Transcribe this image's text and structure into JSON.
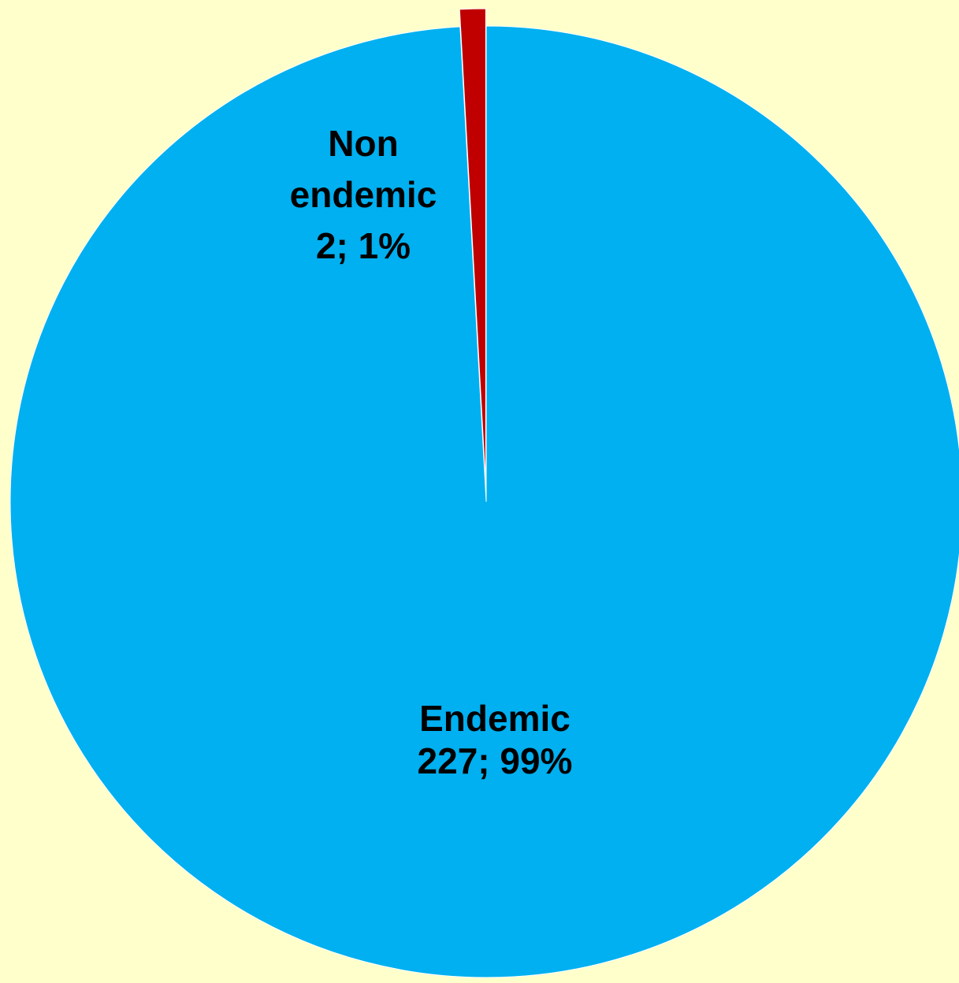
{
  "background_color": "#FFFFCC",
  "chart_data": {
    "type": "pie",
    "title": "",
    "start_angle_deg": 0,
    "direction": "counterclockwise",
    "slices": [
      {
        "id": "endemic",
        "label_lines": [
          "Endemic",
          "227; 99%"
        ],
        "value": 227,
        "percent": 99,
        "color": "#00B0F0"
      },
      {
        "id": "non-endemic",
        "label_lines": [
          "Non",
          "endemic",
          "2; 1%"
        ],
        "value": 2,
        "percent": 1,
        "color": "#C00000",
        "exploded": true
      }
    ]
  }
}
